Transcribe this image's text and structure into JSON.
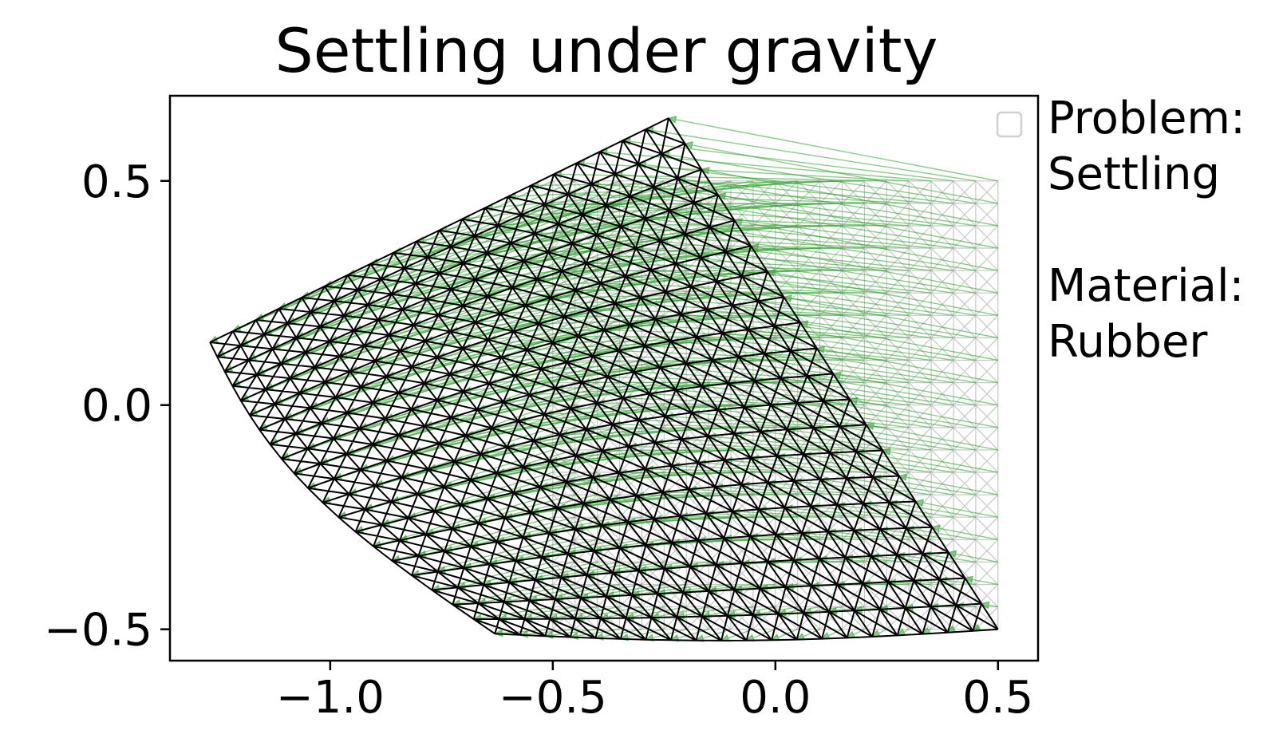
{
  "chart_data": {
    "type": "quiver-mesh",
    "title": "Settling under gravity",
    "xlabel": "",
    "ylabel": "",
    "xlim": [
      -1.36,
      0.59
    ],
    "ylim": [
      -0.57,
      0.69
    ],
    "x_ticks": [
      -1.0,
      -0.5,
      0.0,
      0.5
    ],
    "x_tick_labels": [
      "−1.0",
      "−0.5",
      "0.0",
      "0.5"
    ],
    "y_ticks": [
      -0.5,
      0.0,
      0.5
    ],
    "y_tick_labels": [
      "−0.5",
      "0.0",
      "0.5"
    ],
    "grid": false,
    "legend": {
      "placement": "top-right",
      "entries": []
    },
    "annotation_lines": [
      "Problem:",
      "Settling",
      "",
      "Material:",
      "Rubber"
    ],
    "colors": {
      "deformed_mesh": "#000000",
      "rest_mesh": "#c8c8c8",
      "displacement_arrows": "#2ca02c",
      "axes": "#000000"
    },
    "mesh": {
      "description": "triangulated square grid with both diagonals",
      "rest_x_range": [
        -0.5,
        0.5
      ],
      "rest_y_range": [
        -0.5,
        0.5
      ],
      "nodes_per_side": 21
    },
    "deformed_outline": {
      "bottom_right": [
        0.5,
        -0.5
      ],
      "top_right": [
        -0.24,
        0.64
      ],
      "top_left": [
        -1.27,
        0.14
      ],
      "bottom_left": [
        -0.63,
        -0.51
      ]
    }
  }
}
